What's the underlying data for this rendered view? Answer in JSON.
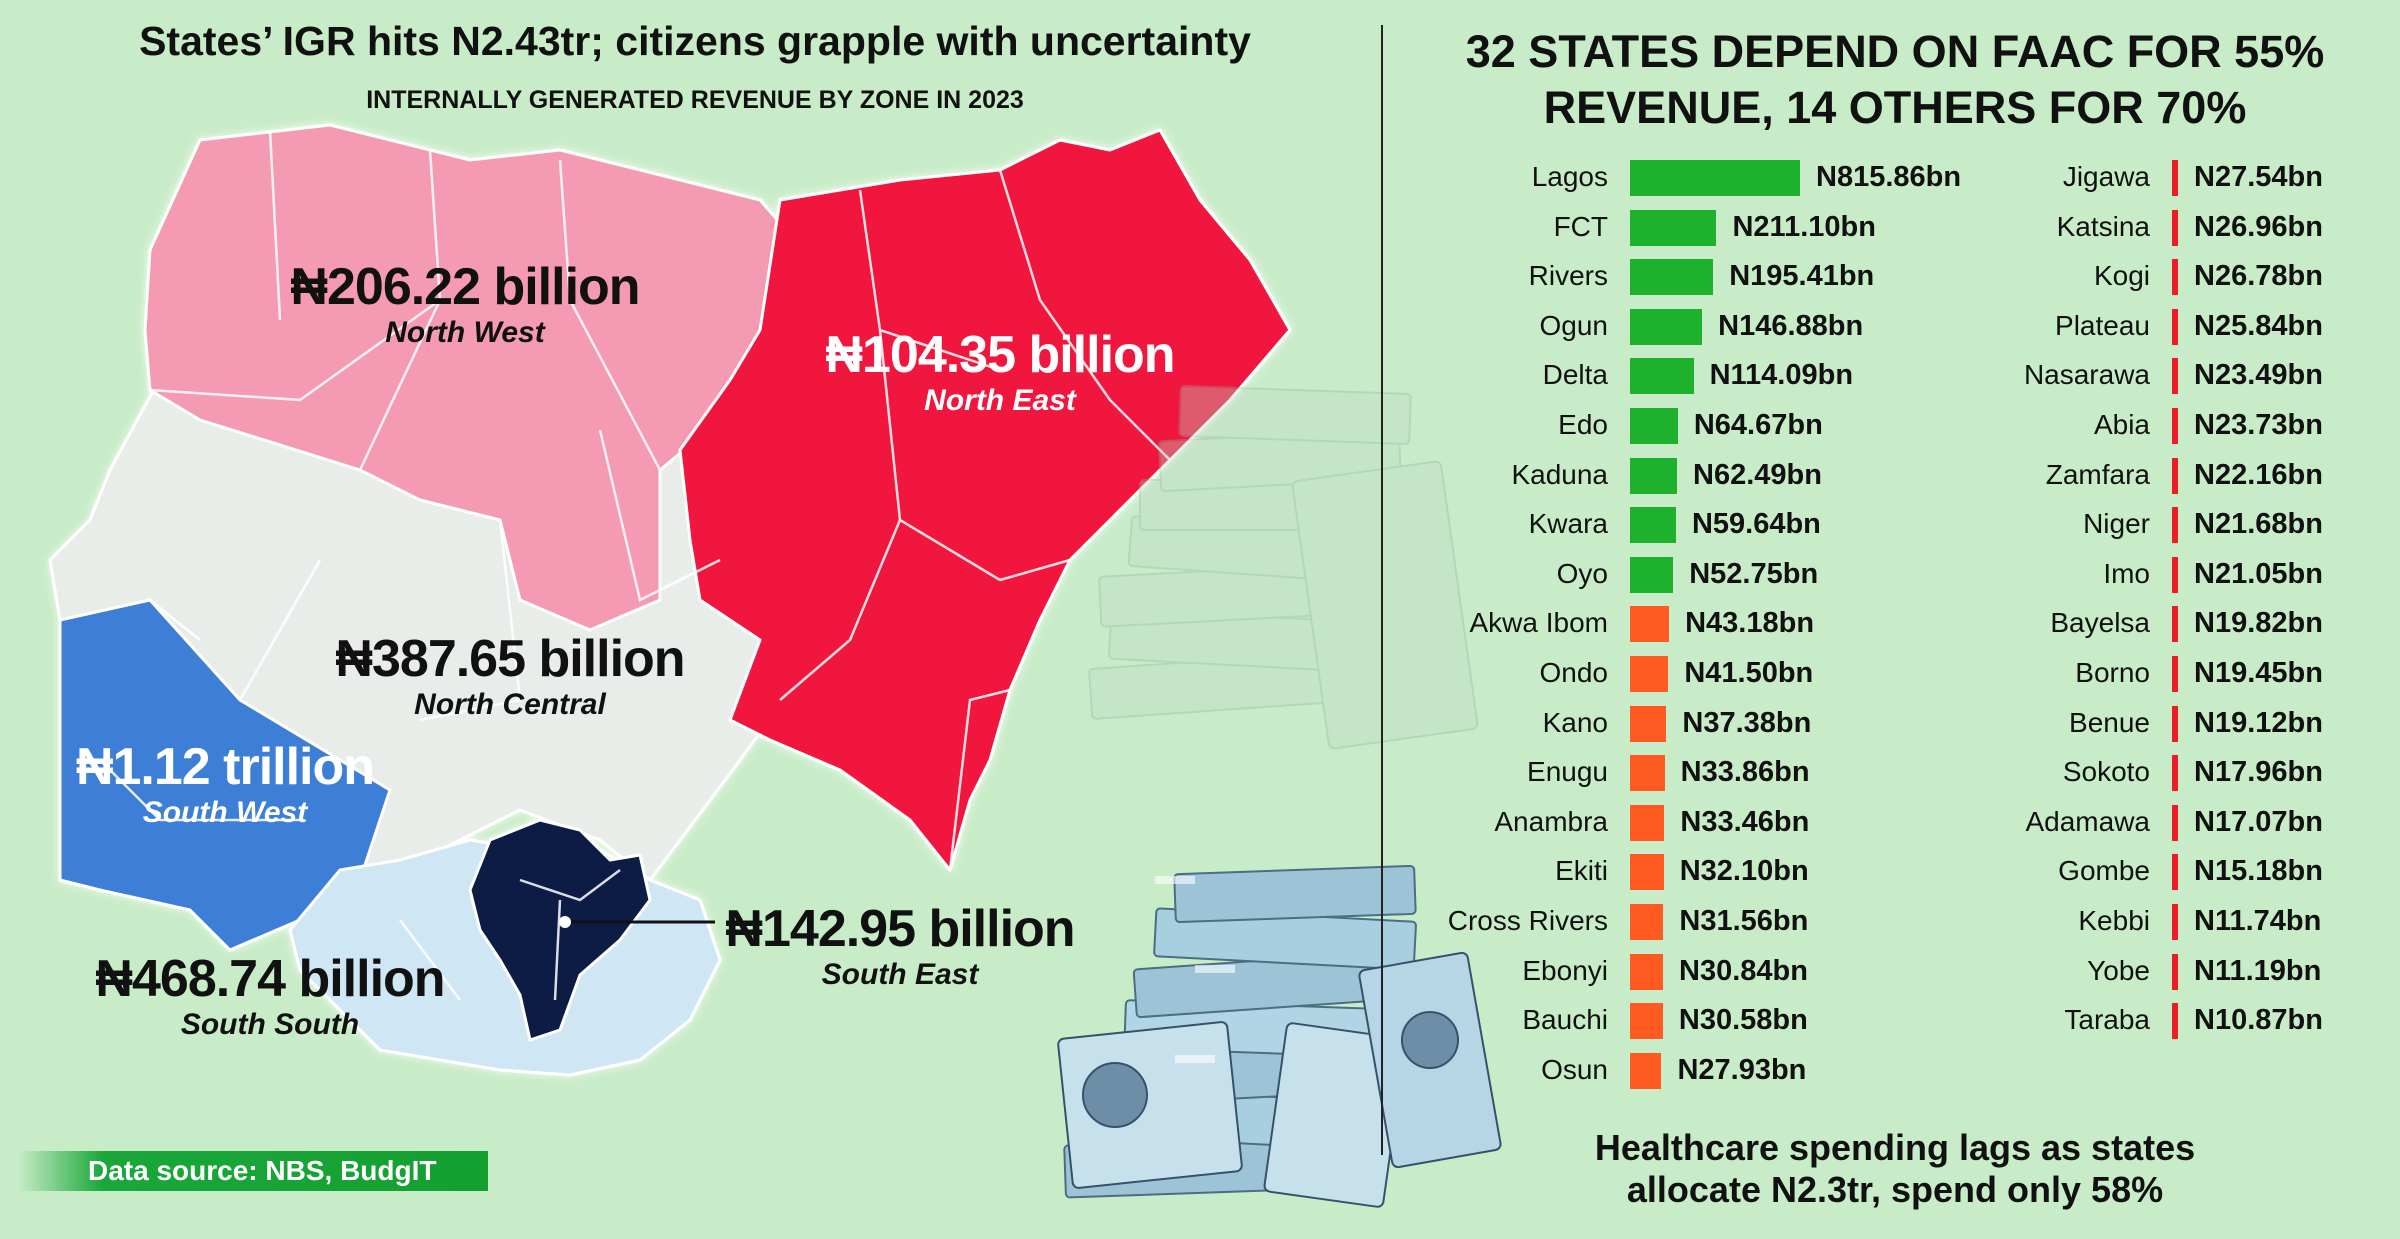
{
  "left_panel": {
    "title": "States’ IGR hits N2.43tr; citizens grapple with uncertainty",
    "subtitle": "INTERNALLY GENERATED REVENUE BY ZONE IN 2023",
    "source": "Data source: NBS, BudgIT"
  },
  "right_panel": {
    "title_line1": "32 STATES DEPEND ON FAAC FOR 55%",
    "title_line2": "REVENUE, 14 OTHERS FOR 70%",
    "footer_line1": "Healthcare spending lags as states",
    "footer_line2": "allocate N2.3tr, spend only 58%"
  },
  "zone_labels": [
    {
      "id": "north-west",
      "amount": "₦206.22 billion",
      "zone": "North West",
      "color": "#111111"
    },
    {
      "id": "north-east",
      "amount": "₦104.35 billion",
      "zone": "North East",
      "color": "#ffffff"
    },
    {
      "id": "north-central",
      "amount": "₦387.65 billion",
      "zone": "North Central",
      "color": "#111111"
    },
    {
      "id": "south-west",
      "amount": "₦1.12 trillion",
      "zone": "South West",
      "color": "#ffffff"
    },
    {
      "id": "south-south",
      "amount": "₦468.74 billion",
      "zone": "South South",
      "color": "#111111"
    },
    {
      "id": "south-east",
      "amount": "₦142.95 billion",
      "zone": "South East",
      "color": "#111111"
    }
  ],
  "colors": {
    "background": "#c9ecc8",
    "north_west": "#f49ab2",
    "north_east": "#f0183c",
    "north_central": "#e9ede9",
    "south_west": "#3d7fd6",
    "south_south": "#cfe6f5",
    "south_east": "#0d1e45",
    "bar_green": "#1eb12b",
    "bar_orange": "#ff5a1f",
    "bar_red": "#ee1c24"
  },
  "chart_data": [
    {
      "type": "map",
      "title": "INTERNALLY GENERATED REVENUE BY ZONE IN 2023",
      "categories": [
        "North West",
        "North East",
        "North Central",
        "South West",
        "South South",
        "South East"
      ],
      "values": [
        206.22,
        104.35,
        387.65,
        1120,
        468.74,
        142.95
      ]
    },
    {
      "type": "bar",
      "categories": [
        "Lagos",
        "FCT",
        "Rivers",
        "Ogun",
        "Delta",
        "Edo",
        "Kaduna",
        "Kwara",
        "Oyo",
        "Akwa Ibom",
        "Ondo",
        "Kano",
        "Enugu",
        "Anambra",
        "Ekiti",
        "Cross Rivers",
        "Ebonyi",
        "Bauchi",
        "Osun",
        "Jigawa",
        "Katsina",
        "Kogi",
        "Plateau",
        "Nasarawa",
        "Abia",
        "Zamfara",
        "Niger",
        "Imo",
        "Bayelsa",
        "Borno",
        "Benue",
        "Sokoto",
        "Adamawa",
        "Gombe",
        "Kebbi",
        "Yobe",
        "Taraba"
      ],
      "values": [
        815.86,
        211.1,
        195.41,
        146.88,
        114.09,
        64.67,
        62.49,
        59.64,
        52.75,
        43.18,
        41.5,
        37.38,
        33.86,
        33.46,
        32.1,
        31.56,
        30.84,
        30.58,
        27.93,
        27.54,
        26.96,
        26.78,
        25.84,
        23.49,
        23.73,
        22.16,
        21.68,
        21.05,
        19.82,
        19.45,
        19.12,
        17.96,
        17.07,
        15.18,
        11.74,
        11.19,
        10.87
      ],
      "labels": [
        "N815.86bn",
        "N211.10bn",
        "N195.41bn",
        "N146.88bn",
        "N114.09bn",
        "N64.67bn",
        "N62.49bn",
        "N59.64bn",
        "N52.75bn",
        "N43.18bn",
        "N41.50bn",
        "N37.38bn",
        "N33.86bn",
        "N33.46bn",
        "N32.10bn",
        "N31.56bn",
        "N30.84bn",
        "N30.58bn",
        "N27.93bn",
        "N27.54bn",
        "N26.96bn",
        "N26.78bn",
        "N25.84bn",
        "N23.49bn",
        "N23.73bn",
        "N22.16bn",
        "N21.68bn",
        "N21.05bn",
        "N19.82bn",
        "N19.45bn",
        "N19.12bn",
        "N17.96bn",
        "N17.07bn",
        "N15.18bn",
        "N11.74bn",
        "N11.19bn",
        "N10.87bn"
      ],
      "tiers": [
        "green",
        "green",
        "green",
        "green",
        "green",
        "green",
        "green",
        "green",
        "green",
        "orange",
        "orange",
        "orange",
        "orange",
        "orange",
        "orange",
        "orange",
        "orange",
        "orange",
        "orange",
        "red",
        "red",
        "red",
        "red",
        "red",
        "red",
        "red",
        "red",
        "red",
        "red",
        "red",
        "red",
        "red",
        "red",
        "red",
        "red",
        "red",
        "red"
      ]
    }
  ]
}
